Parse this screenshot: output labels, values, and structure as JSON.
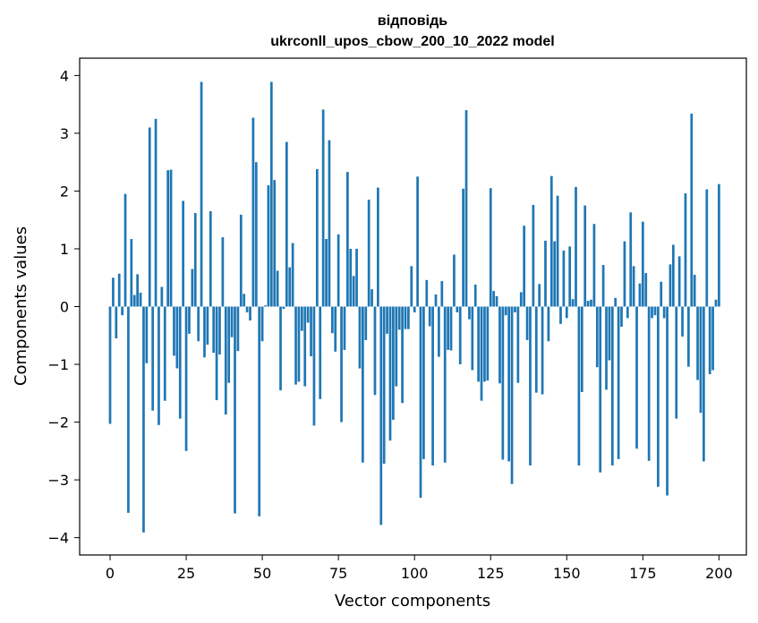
{
  "chart_data": {
    "type": "bar",
    "title": "відповідь",
    "subtitle": "ukrconll_upos_cbow_200_10_2022 model",
    "xlabel": "Vector components",
    "ylabel": "Components values",
    "xlim": [
      -10,
      209
    ],
    "ylim": [
      -4.3,
      4.3
    ],
    "xticks": [
      0,
      25,
      50,
      75,
      100,
      125,
      150,
      175,
      200
    ],
    "xtick_labels": [
      "0",
      "25",
      "50",
      "75",
      "100",
      "125",
      "150",
      "175",
      "200"
    ],
    "yticks": [
      4,
      3,
      2,
      1,
      0,
      -1,
      -2,
      -3,
      -4
    ],
    "ytick_labels": [
      "4",
      "3",
      "2",
      "1",
      "0",
      "−1",
      "−2",
      "−3",
      "−4"
    ],
    "grid": false,
    "bar_color": "#1f77b4",
    "values": [
      -2.03,
      0.5,
      -0.55,
      0.57,
      -0.15,
      1.95,
      -3.57,
      1.17,
      0.2,
      0.56,
      0.24,
      -3.91,
      -0.98,
      3.1,
      -1.8,
      3.25,
      -2.05,
      0.34,
      -1.63,
      2.36,
      2.37,
      -0.85,
      -1.07,
      -1.94,
      1.83,
      -2.5,
      -0.47,
      0.65,
      1.62,
      -0.6,
      3.89,
      -0.88,
      -0.66,
      1.65,
      -0.8,
      -1.62,
      -0.83,
      1.2,
      -1.87,
      -1.32,
      -0.53,
      -3.58,
      -0.77,
      1.59,
      0.22,
      -0.1,
      -0.24,
      3.27,
      2.5,
      -3.63,
      -0.6,
      0.02,
      2.1,
      3.89,
      2.19,
      0.62,
      -1.45,
      -0.04,
      2.85,
      0.68,
      1.1,
      -1.35,
      -1.3,
      -0.42,
      -1.38,
      -0.28,
      -0.86,
      -2.06,
      2.38,
      -1.6,
      3.41,
      1.17,
      2.88,
      -0.46,
      -0.78,
      1.25,
      -2.0,
      -0.75,
      2.33,
      1.0,
      0.53,
      1.0,
      -1.07,
      -2.7,
      -0.58,
      1.85,
      0.3,
      -1.53,
      2.06,
      -3.78,
      -2.72,
      -0.47,
      -2.32,
      -1.96,
      -1.38,
      -0.4,
      -1.67,
      -0.39,
      -0.39,
      0.7,
      -0.1,
      2.25,
      -3.31,
      -2.64,
      0.46,
      -0.34,
      -2.75,
      0.21,
      -0.87,
      0.44,
      -2.7,
      -0.75,
      -0.76,
      0.9,
      -0.1,
      -1.0,
      2.04,
      3.4,
      -0.22,
      -1.1,
      0.38,
      -1.3,
      -1.63,
      -1.3,
      -1.28,
      2.05,
      0.27,
      0.18,
      -1.33,
      -2.65,
      -0.15,
      -2.68,
      -3.07,
      -0.1,
      -1.32,
      0.25,
      1.4,
      -0.58,
      -2.75,
      1.76,
      -1.49,
      0.39,
      -1.52,
      1.14,
      -0.6,
      2.26,
      1.13,
      1.92,
      -0.3,
      0.97,
      -0.2,
      1.04,
      0.13,
      2.07,
      -2.75,
      -1.48,
      1.75,
      0.1,
      0.12,
      1.43,
      -1.05,
      -2.87,
      0.72,
      -1.44,
      -0.93,
      -2.75,
      0.15,
      -2.64,
      -0.35,
      1.13,
      -0.2,
      1.63,
      0.7,
      -2.46,
      0.4,
      1.47,
      0.58,
      -2.67,
      -0.2,
      -0.15,
      -3.12,
      0.43,
      -0.2,
      -3.27,
      0.73,
      1.07,
      -1.94,
      0.87,
      -0.52,
      1.96,
      -1.04,
      3.34,
      0.55,
      -1.27,
      -1.84,
      -2.68,
      2.03,
      -1.17,
      -1.1,
      0.12,
      2.12
    ]
  }
}
